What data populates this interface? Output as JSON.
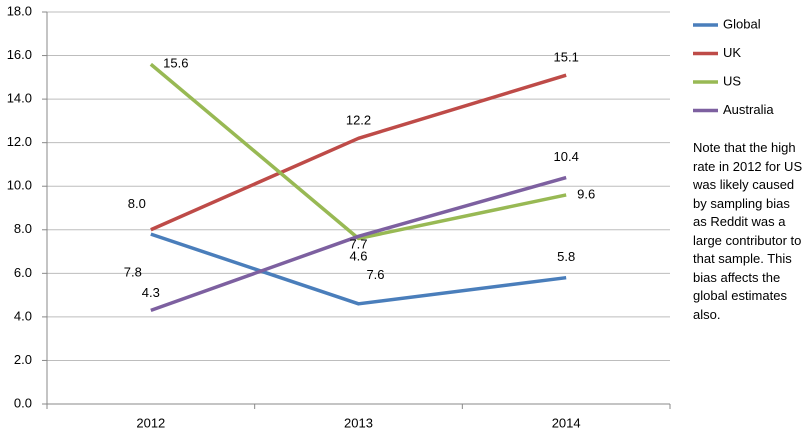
{
  "chart_data": {
    "type": "line",
    "categories": [
      "2012",
      "2013",
      "2014"
    ],
    "series": [
      {
        "name": "Global",
        "color": "#4a7ebb",
        "values": [
          7.8,
          4.6,
          5.8
        ],
        "value_labels": [
          "7.8",
          "4.6",
          "5.8"
        ]
      },
      {
        "name": "UK",
        "color": "#be4b48",
        "values": [
          8.0,
          12.2,
          15.1
        ],
        "value_labels": [
          "8.0",
          "12.2",
          "15.1"
        ]
      },
      {
        "name": "US",
        "color": "#98b954",
        "values": [
          15.6,
          7.6,
          9.6
        ],
        "value_labels": [
          "15.6",
          "7.6",
          "9.6"
        ]
      },
      {
        "name": "Australia",
        "color": "#7d60a0",
        "values": [
          4.3,
          7.7,
          10.4
        ],
        "value_labels": [
          "4.3",
          "7.7",
          "10.4"
        ]
      }
    ],
    "ylim": [
      0,
      18
    ],
    "yticks": [
      {
        "value": 0,
        "label": "0.0"
      },
      {
        "value": 2,
        "label": "2.0"
      },
      {
        "value": 4,
        "label": "4.0"
      },
      {
        "value": 6,
        "label": "6.0"
      },
      {
        "value": 8,
        "label": "8.0"
      },
      {
        "value": 10,
        "label": "10.0"
      },
      {
        "value": 12,
        "label": "12.0"
      },
      {
        "value": 14,
        "label": "14.0"
      },
      {
        "value": 16,
        "label": "16.0"
      },
      {
        "value": 18,
        "label": "18.0"
      }
    ],
    "grid": true,
    "legend": "right",
    "annotation": "Note that the high rate in 2012 for US was likely caused by sampling bias as Reddit was a large contributor to that sample. This bias affects the global estimates also."
  }
}
